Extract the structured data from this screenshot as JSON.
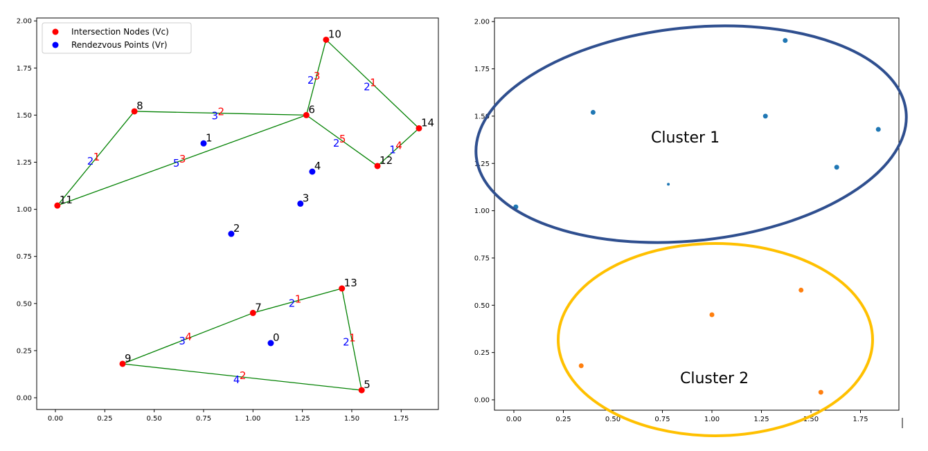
{
  "chart_data": [
    {
      "type": "scatter",
      "title": "",
      "xlabel": "",
      "ylabel": "",
      "xlim": [
        -0.08,
        1.95
      ],
      "ylim": [
        -0.07,
        2.0
      ],
      "xticks": [
        "0.00",
        "0.25",
        "0.50",
        "0.75",
        "1.00",
        "1.25",
        "1.50",
        "1.75"
      ],
      "yticks": [
        "0.00",
        "0.25",
        "0.50",
        "0.75",
        "1.00",
        "1.25",
        "1.50",
        "1.75",
        "2.00"
      ],
      "legend_position": "upper-left",
      "series": [
        {
          "name": "Intersection Nodes (Vc)",
          "color": "#ff0000",
          "points": [
            {
              "id": "5",
              "x": 1.55,
              "y": 0.04
            },
            {
              "id": "6",
              "x": 1.27,
              "y": 1.5
            },
            {
              "id": "7",
              "x": 1.0,
              "y": 0.45
            },
            {
              "id": "8",
              "x": 0.4,
              "y": 1.52
            },
            {
              "id": "9",
              "x": 0.34,
              "y": 0.18
            },
            {
              "id": "10",
              "x": 1.37,
              "y": 1.9
            },
            {
              "id": "11",
              "x": 0.01,
              "y": 1.02
            },
            {
              "id": "12",
              "x": 1.63,
              "y": 1.23
            },
            {
              "id": "13",
              "x": 1.45,
              "y": 0.58
            },
            {
              "id": "14",
              "x": 1.84,
              "y": 1.43
            }
          ]
        },
        {
          "name": "Rendezvous Points (Vr)",
          "color": "#0000ff",
          "points": [
            {
              "id": "0",
              "x": 1.09,
              "y": 0.29
            },
            {
              "id": "1",
              "x": 0.75,
              "y": 1.35
            },
            {
              "id": "2",
              "x": 0.89,
              "y": 0.87
            },
            {
              "id": "3",
              "x": 1.24,
              "y": 1.03
            },
            {
              "id": "4",
              "x": 1.3,
              "y": 1.2
            }
          ]
        }
      ],
      "edge_color": "#008000",
      "edges": [
        {
          "from": "11",
          "to": "8",
          "red": "1",
          "blue": "2"
        },
        {
          "from": "8",
          "to": "6",
          "red": "2",
          "blue": "3"
        },
        {
          "from": "11",
          "to": "6",
          "red": "3",
          "blue": "5"
        },
        {
          "from": "6",
          "to": "10",
          "red": "3",
          "blue": "2"
        },
        {
          "from": "10",
          "to": "14",
          "red": "1",
          "blue": "2"
        },
        {
          "from": "6",
          "to": "12",
          "red": "5",
          "blue": "2"
        },
        {
          "from": "12",
          "to": "14",
          "red": "4",
          "blue": "1"
        },
        {
          "from": "9",
          "to": "7",
          "red": "4",
          "blue": "3"
        },
        {
          "from": "7",
          "to": "13",
          "red": "1",
          "blue": "2"
        },
        {
          "from": "13",
          "to": "5",
          "red": "1",
          "blue": "2"
        },
        {
          "from": "9",
          "to": "5",
          "red": "2",
          "blue": "4"
        }
      ]
    },
    {
      "type": "scatter",
      "title": "",
      "xlabel": "",
      "ylabel": "",
      "xlim": [
        -0.08,
        1.95
      ],
      "ylim": [
        -0.07,
        2.0
      ],
      "xticks": [
        "0.00",
        "0.25",
        "0.50",
        "0.75",
        "1.00",
        "1.25",
        "1.50",
        "1.75"
      ],
      "yticks": [
        "0.00",
        "0.25",
        "0.50",
        "0.75",
        "1.00",
        "1.25",
        "1.50",
        "1.75",
        "2.00"
      ],
      "series": [
        {
          "name": "Cluster 1",
          "color": "#1f77b4",
          "ellipse_color": "#2f4f8f",
          "points": [
            {
              "x": 0.01,
              "y": 1.02
            },
            {
              "x": 0.4,
              "y": 1.52
            },
            {
              "x": 0.78,
              "y": 1.14,
              "small": true
            },
            {
              "x": 1.27,
              "y": 1.5
            },
            {
              "x": 1.37,
              "y": 1.9
            },
            {
              "x": 1.63,
              "y": 1.23
            },
            {
              "x": 1.84,
              "y": 1.43
            }
          ]
        },
        {
          "name": "Cluster 2",
          "color": "#ff7f0e",
          "ellipse_color": "#ffc000",
          "points": [
            {
              "x": 0.34,
              "y": 0.18
            },
            {
              "x": 1.0,
              "y": 0.45
            },
            {
              "x": 1.45,
              "y": 0.58
            },
            {
              "x": 1.55,
              "y": 0.04
            }
          ]
        }
      ]
    }
  ]
}
